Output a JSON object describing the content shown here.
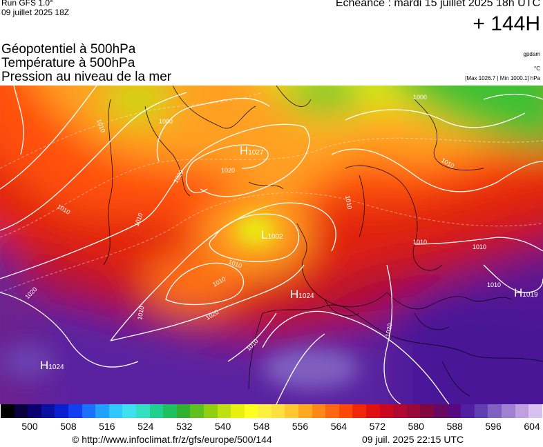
{
  "header": {
    "run_line1": "Run GFS 1.0°",
    "run_line2": "09 juillet 2025 18Z",
    "echeance": "Echéance : mardi 15 juillet 2025 18h UTC",
    "hour": "+ 144H"
  },
  "titles": {
    "line1": "Géopotentiel à 500hPa",
    "line2": "Température à 500hPa",
    "line3": "Pression au niveau de la mer"
  },
  "units": {
    "geo": "gpdam",
    "temp": "°C",
    "pressure": "[Max 1026.7 | Min 1000.1] hPa"
  },
  "map": {
    "centers": [
      {
        "type": "H",
        "value": "1027"
      },
      {
        "type": "L",
        "value": "1002"
      },
      {
        "type": "H",
        "value": "1024"
      },
      {
        "type": "H",
        "value": "1019"
      },
      {
        "type": "H",
        "value": "1024"
      }
    ],
    "isobar_labels": [
      "1010",
      "1020",
      "1000",
      "1010",
      "1010",
      "1020",
      "1010",
      "1010",
      "1020",
      "1010",
      "1020",
      "1010",
      "1010",
      "1010",
      "1010",
      "1000",
      "1010",
      "1020",
      "1010"
    ]
  },
  "scale": {
    "colors": [
      "#000000",
      "#0a0040",
      "#0b0070",
      "#0a10a0",
      "#0a20d0",
      "#1040f0",
      "#1a70ff",
      "#20a0ff",
      "#30c8ff",
      "#40e0f0",
      "#30e0c0",
      "#20d090",
      "#20c060",
      "#30b030",
      "#60c020",
      "#90d010",
      "#c0e010",
      "#e8f010",
      "#ffff20",
      "#fff040",
      "#ffe040",
      "#ffc830",
      "#ffa820",
      "#ff8818",
      "#ff6810",
      "#ff4808",
      "#f02808",
      "#e01010",
      "#c80820",
      "#b00830",
      "#980838",
      "#800840",
      "#680860",
      "#580880",
      "#5020a0",
      "#6040b0",
      "#8060c0",
      "#a080d0",
      "#c0a0e0",
      "#d8c0f0"
    ],
    "ticks": [
      "500",
      "508",
      "516",
      "524",
      "532",
      "540",
      "548",
      "556",
      "564",
      "572",
      "580",
      "588",
      "596",
      "604"
    ]
  },
  "footer": {
    "credit": "© http://www.infoclimat.fr/z/gfs/europe/500/144",
    "timestamp": "09 juil. 2025 22:15 UTC"
  }
}
